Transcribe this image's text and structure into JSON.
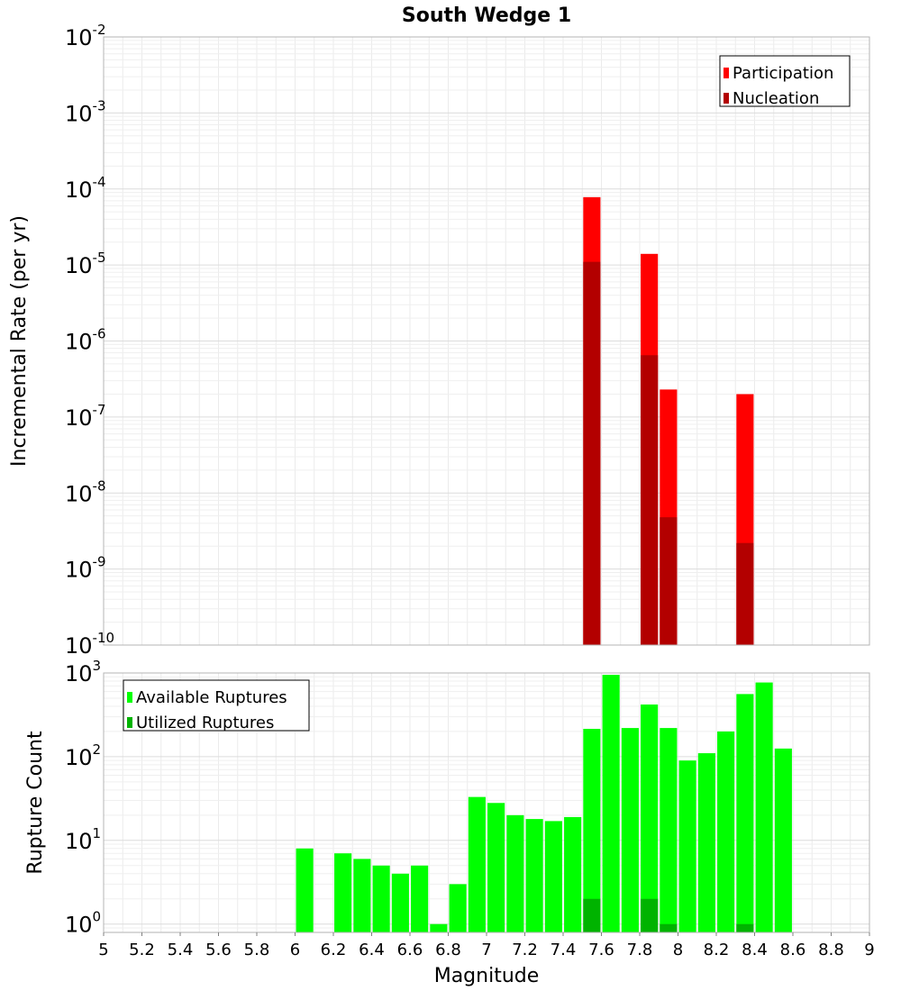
{
  "chart_data": [
    {
      "type": "bar",
      "title": "South Wedge 1",
      "xlabel": "Magnitude",
      "ylabel": "Incremental Rate (per yr)",
      "yscale": "log",
      "xlim": [
        5,
        9
      ],
      "ylim_exp": [
        -10,
        -2
      ],
      "y_ticks": [
        {
          "base": "10",
          "exp": "-10"
        },
        {
          "base": "10",
          "exp": "-9"
        },
        {
          "base": "10",
          "exp": "-8"
        },
        {
          "base": "10",
          "exp": "-7"
        },
        {
          "base": "10",
          "exp": "-6"
        },
        {
          "base": "10",
          "exp": "-5"
        },
        {
          "base": "10",
          "exp": "-4"
        },
        {
          "base": "10",
          "exp": "-3"
        },
        {
          "base": "10",
          "exp": "-2"
        }
      ],
      "bar_width": 0.09,
      "legend_position": "top-right",
      "series": [
        {
          "name": "Participation",
          "color": "#ff0000",
          "points": [
            {
              "x": 7.55,
              "y": 7.8e-05
            },
            {
              "x": 7.85,
              "y": 1.4e-05
            },
            {
              "x": 7.95,
              "y": 2.3e-07
            },
            {
              "x": 8.35,
              "y": 2e-07
            }
          ]
        },
        {
          "name": "Nucleation",
          "color": "#b30000",
          "points": [
            {
              "x": 7.55,
              "y": 1.1e-05
            },
            {
              "x": 7.85,
              "y": 6.5e-07
            },
            {
              "x": 7.95,
              "y": 4.8e-09
            },
            {
              "x": 8.35,
              "y": 2.2e-09
            }
          ]
        }
      ]
    },
    {
      "type": "bar",
      "title": "",
      "xlabel": "Magnitude",
      "ylabel": "Rupture Count",
      "yscale": "log",
      "xlim": [
        5,
        9
      ],
      "ylim_exp": [
        -0.1,
        3
      ],
      "y_ticks": [
        {
          "base": "10",
          "exp": "0"
        },
        {
          "base": "10",
          "exp": "1"
        },
        {
          "base": "10",
          "exp": "2"
        },
        {
          "base": "10",
          "exp": "3"
        }
      ],
      "x_ticks": [
        "5",
        "5.2",
        "5.4",
        "5.6",
        "5.8",
        "6",
        "6.2",
        "6.4",
        "6.6",
        "6.8",
        "7",
        "7.2",
        "7.4",
        "7.6",
        "7.8",
        "8",
        "8.2",
        "8.4",
        "8.6",
        "8.8",
        "9"
      ],
      "bar_width": 0.09,
      "legend_position": "top-left",
      "series": [
        {
          "name": "Available Ruptures",
          "color": "#00ff00",
          "points": [
            {
              "x": 6.05,
              "y": 8
            },
            {
              "x": 6.25,
              "y": 7
            },
            {
              "x": 6.35,
              "y": 6
            },
            {
              "x": 6.45,
              "y": 5
            },
            {
              "x": 6.55,
              "y": 4
            },
            {
              "x": 6.65,
              "y": 5
            },
            {
              "x": 6.75,
              "y": 1
            },
            {
              "x": 6.85,
              "y": 3
            },
            {
              "x": 6.95,
              "y": 33
            },
            {
              "x": 7.05,
              "y": 28
            },
            {
              "x": 7.15,
              "y": 20
            },
            {
              "x": 7.25,
              "y": 18
            },
            {
              "x": 7.35,
              "y": 17
            },
            {
              "x": 7.45,
              "y": 19
            },
            {
              "x": 7.55,
              "y": 215
            },
            {
              "x": 7.65,
              "y": 950
            },
            {
              "x": 7.75,
              "y": 220
            },
            {
              "x": 7.85,
              "y": 420
            },
            {
              "x": 7.95,
              "y": 220
            },
            {
              "x": 8.05,
              "y": 90
            },
            {
              "x": 8.15,
              "y": 110
            },
            {
              "x": 8.25,
              "y": 200
            },
            {
              "x": 8.35,
              "y": 560
            },
            {
              "x": 8.45,
              "y": 770
            },
            {
              "x": 8.55,
              "y": 125
            }
          ]
        },
        {
          "name": "Utilized Ruptures",
          "color": "#00b300",
          "points": [
            {
              "x": 7.55,
              "y": 2
            },
            {
              "x": 7.85,
              "y": 2
            },
            {
              "x": 7.95,
              "y": 1
            },
            {
              "x": 8.35,
              "y": 1
            }
          ]
        }
      ]
    }
  ]
}
